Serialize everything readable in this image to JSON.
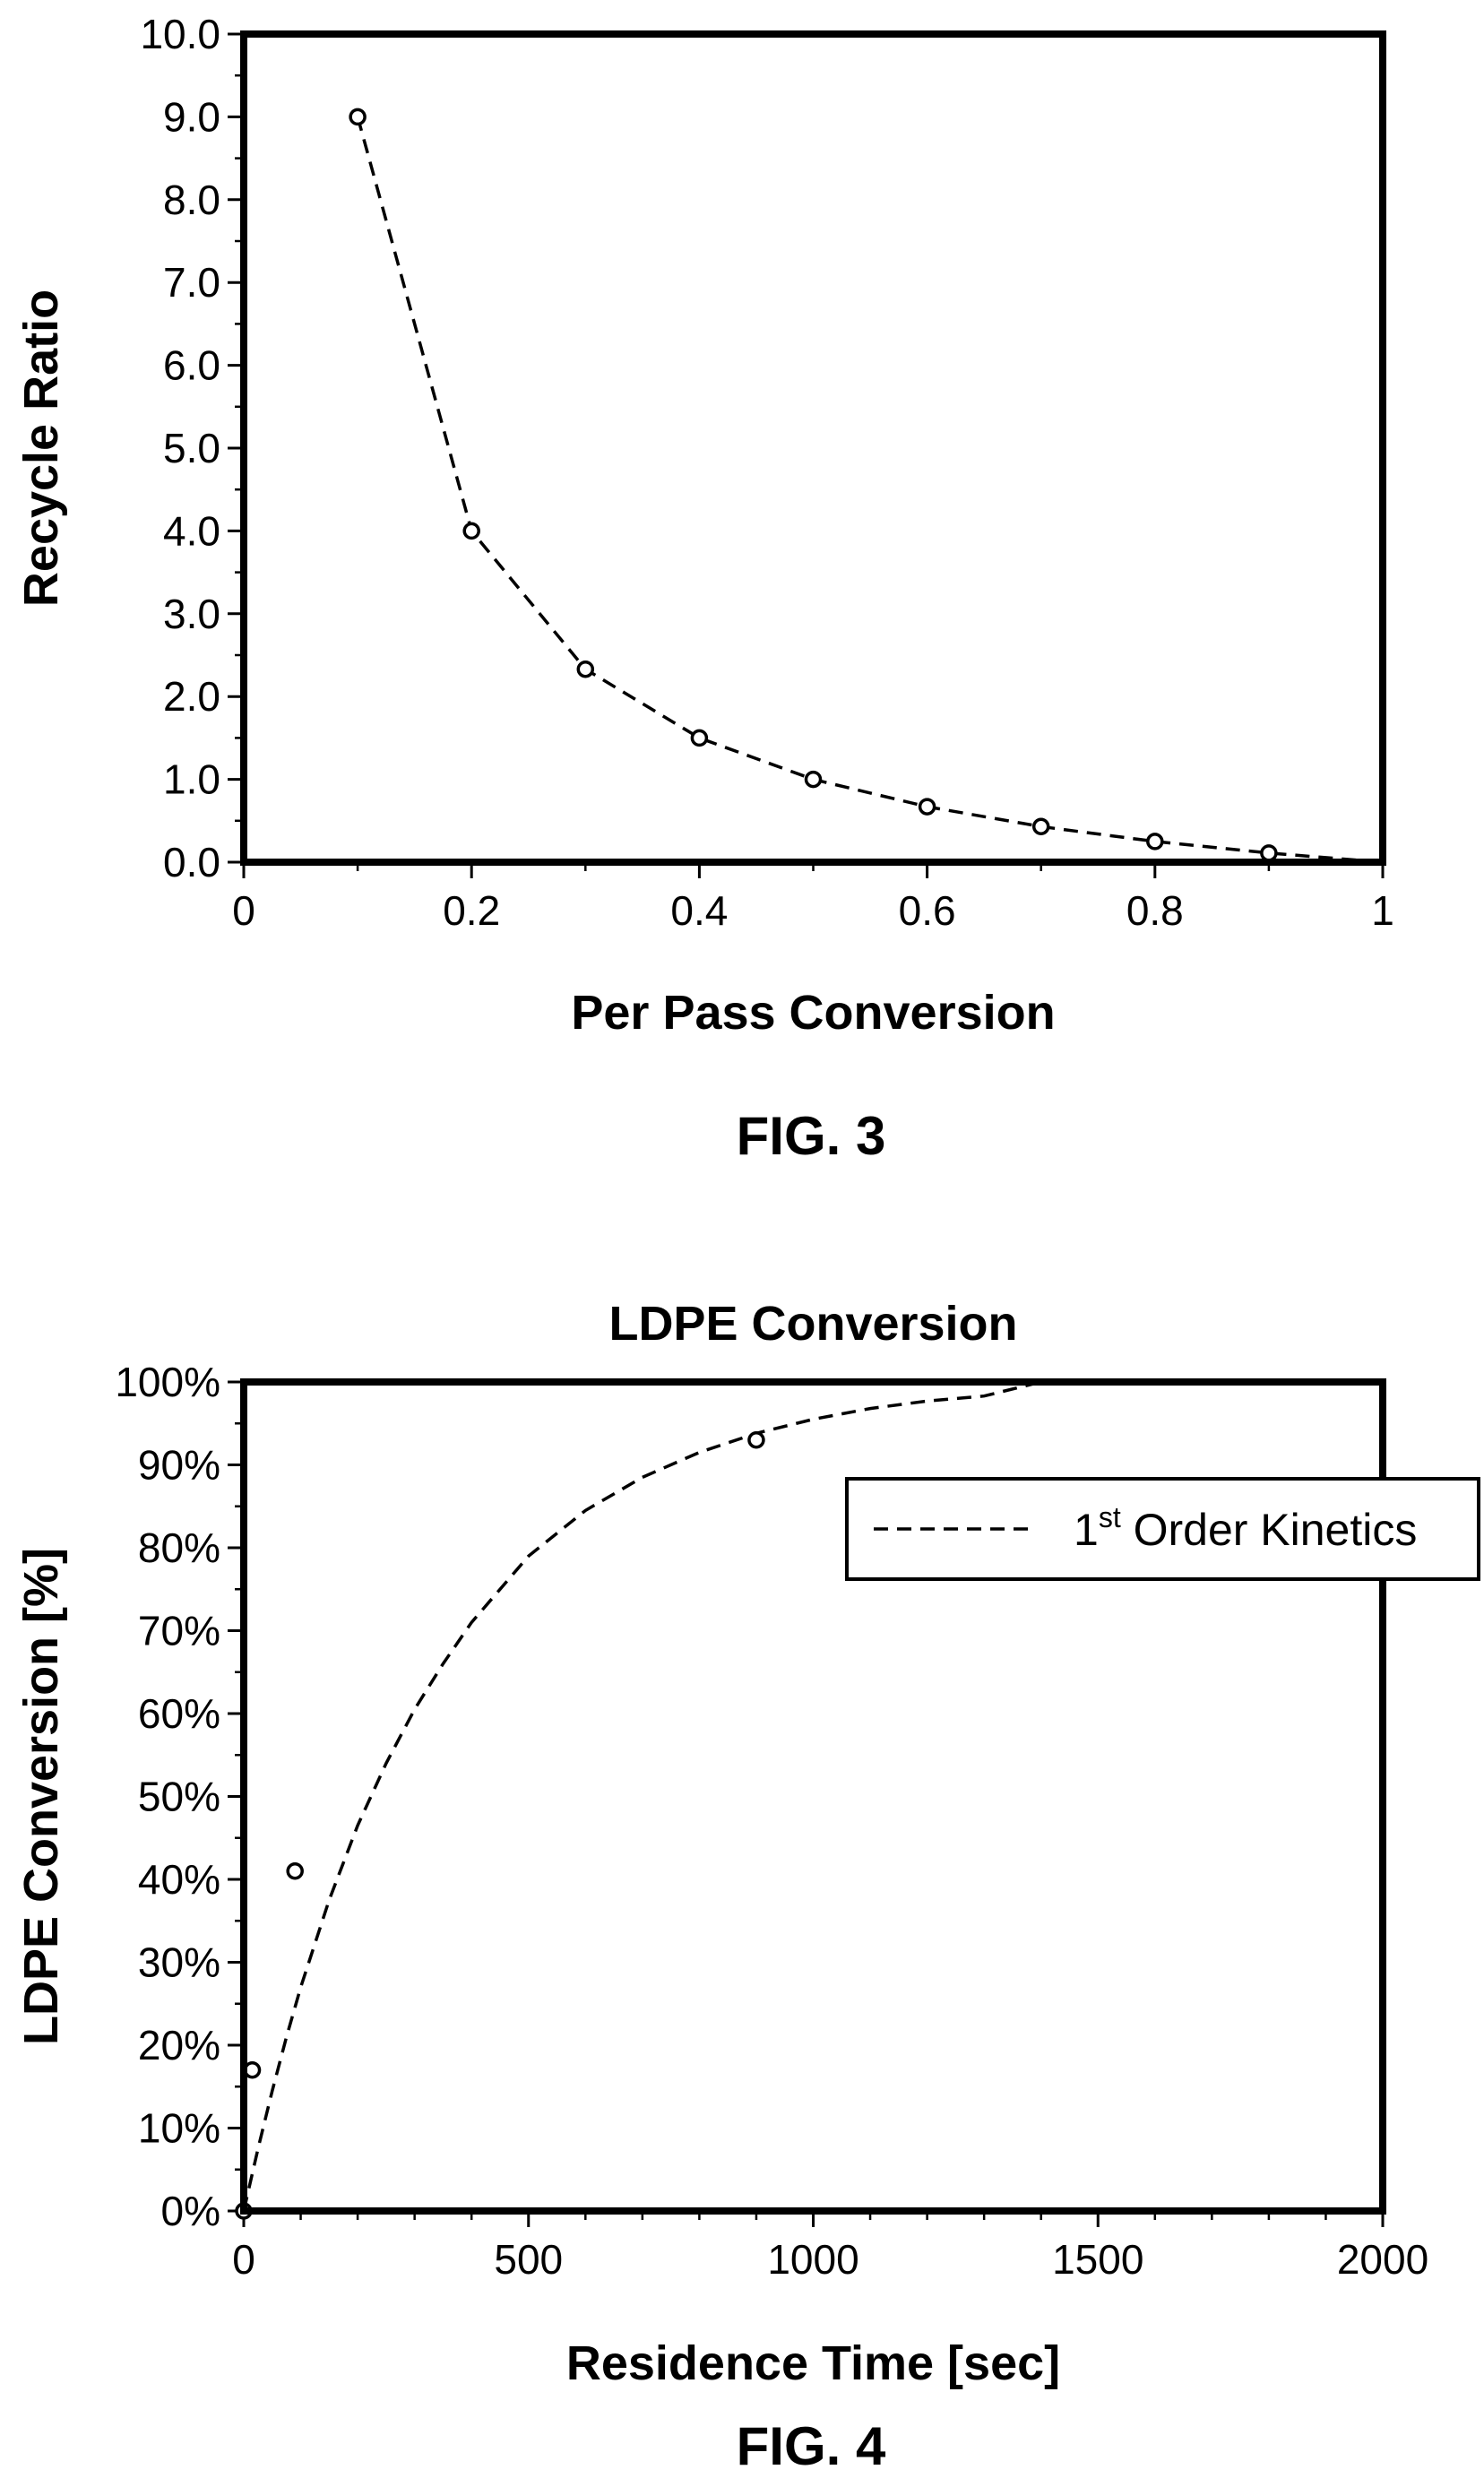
{
  "chart_data": [
    {
      "type": "line",
      "title": "",
      "caption": "FIG. 3",
      "xlabel": "Per Pass Conversion",
      "ylabel": "Recycle Ratio",
      "xlim": [
        0,
        1
      ],
      "ylim": [
        0,
        10
      ],
      "x_ticks": [
        "0",
        "0.2",
        "0.4",
        "0.6",
        "0.8",
        "1"
      ],
      "y_ticks": [
        "0.0",
        "1.0",
        "2.0",
        "3.0",
        "4.0",
        "5.0",
        "6.0",
        "7.0",
        "8.0",
        "9.0",
        "10.0"
      ],
      "series": [
        {
          "style": "dashed line with circle markers",
          "x": [
            0.1,
            0.2,
            0.3,
            0.4,
            0.5,
            0.6,
            0.7,
            0.8,
            0.9,
            1.0
          ],
          "y": [
            9.0,
            4.0,
            2.33,
            1.5,
            1.0,
            0.67,
            0.43,
            0.25,
            0.11,
            0.0
          ],
          "markers_x": [
            0.1,
            0.2,
            0.3,
            0.4,
            0.5,
            0.6,
            0.7,
            0.8,
            0.9
          ],
          "markers_y": [
            9.0,
            4.0,
            2.33,
            1.5,
            1.0,
            0.67,
            0.43,
            0.25,
            0.11
          ]
        }
      ],
      "grid": false,
      "legend": "none"
    },
    {
      "type": "scatter",
      "title": "LDPE Conversion",
      "caption": "FIG. 4",
      "xlabel": "Residence Time [sec]",
      "ylabel": "LDPE Conversion [%]",
      "xlim": [
        0,
        2000
      ],
      "ylim": [
        0,
        100
      ],
      "x_ticks": [
        "0",
        "500",
        "1000",
        "1500",
        "2000"
      ],
      "y_ticks": [
        "0%",
        "10%",
        "20%",
        "30%",
        "40%",
        "50%",
        "60%",
        "70%",
        "80%",
        "90%",
        "100%"
      ],
      "series": [
        {
          "name_base": "1",
          "name_sup": "st",
          "name_rest": " Order Kinetics",
          "style": "dashed line",
          "x": [
            0,
            25,
            50,
            75,
            100,
            150,
            200,
            250,
            300,
            350,
            400,
            500,
            600,
            700,
            800,
            900,
            1000,
            1100,
            1200,
            1300,
            1400
          ],
          "y": [
            0,
            7.5,
            14.5,
            21,
            27,
            37.5,
            46.5,
            54,
            60.5,
            66,
            71,
            79,
            84.5,
            88.5,
            91.5,
            93.8,
            95.5,
            96.8,
            97.7,
            98.3,
            100
          ]
        },
        {
          "style": "circle markers",
          "x": [
            0,
            15,
            90,
            900
          ],
          "y": [
            0,
            17,
            41,
            93
          ]
        }
      ],
      "grid": false,
      "legend": "top-right"
    }
  ]
}
